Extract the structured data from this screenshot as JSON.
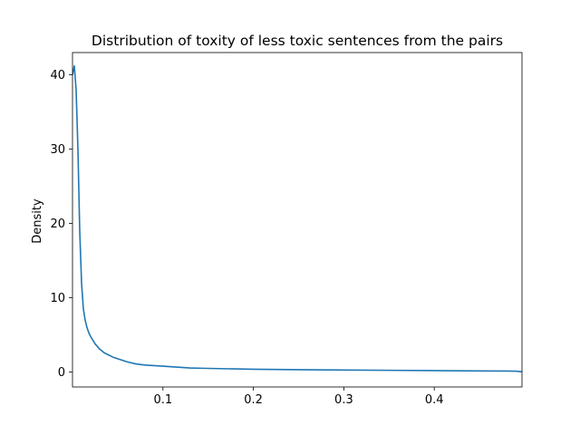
{
  "chart_data": {
    "type": "line",
    "title": "Distribution of toxity of less toxic sentences from the pairs",
    "xlabel": "",
    "ylabel": "Density",
    "xlim": [
      0.0,
      0.497
    ],
    "ylim": [
      -2.0,
      43.0
    ],
    "x_ticks": [
      0.1,
      0.2,
      0.3,
      0.4
    ],
    "x_tick_labels": [
      "0.1",
      "0.2",
      "0.3",
      "0.4"
    ],
    "y_ticks": [
      0,
      10,
      20,
      30,
      40
    ],
    "y_tick_labels": [
      "0",
      "10",
      "20",
      "30",
      "40"
    ],
    "grid": false,
    "series": [
      {
        "color": "#1f77b4",
        "x": [
          0.0,
          0.002,
          0.004,
          0.006,
          0.008,
          0.01,
          0.012,
          0.014,
          0.016,
          0.018,
          0.02,
          0.025,
          0.03,
          0.035,
          0.04,
          0.045,
          0.05,
          0.06,
          0.07,
          0.08,
          0.1,
          0.13,
          0.15,
          0.2,
          0.25,
          0.3,
          0.35,
          0.4,
          0.45,
          0.48,
          0.49,
          0.497
        ],
        "y": [
          40.0,
          41.2,
          38.0,
          30.0,
          19.0,
          12.0,
          8.5,
          7.0,
          6.0,
          5.3,
          4.8,
          3.8,
          3.1,
          2.6,
          2.3,
          2.0,
          1.8,
          1.4,
          1.1,
          0.95,
          0.8,
          0.55,
          0.5,
          0.38,
          0.33,
          0.28,
          0.24,
          0.2,
          0.16,
          0.14,
          0.13,
          0.05
        ]
      }
    ]
  }
}
